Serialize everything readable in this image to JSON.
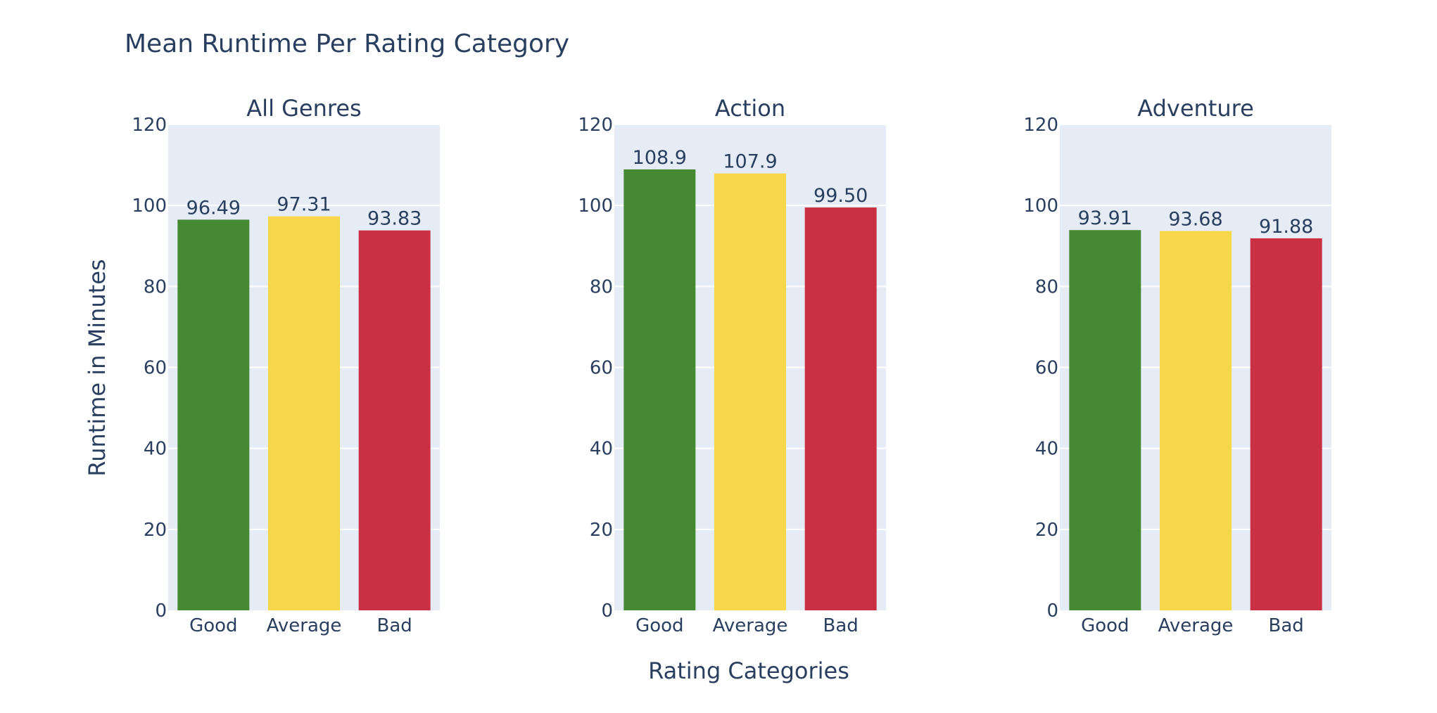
{
  "chart": {
    "title": "Mean Runtime Per Rating Category",
    "xlabel": "Rating Categories",
    "ylabel": "Runtime in Minutes"
  },
  "colors": {
    "plot_background": "#e5ecf6",
    "gridline": "#ffffff",
    "text": "#2a3f5f",
    "good": "#458933",
    "average": "#f8d84a",
    "bad": "#c93043"
  },
  "chart_data": [
    {
      "type": "bar",
      "title": "All Genres",
      "categories": [
        "Good",
        "Average",
        "Bad"
      ],
      "values": [
        96.49,
        97.31,
        93.83
      ],
      "labels": [
        "96.49",
        "97.31",
        "93.83"
      ],
      "ylim": [
        0,
        120
      ],
      "yticks": [
        0,
        20,
        40,
        60,
        80,
        100,
        120
      ],
      "grid": true
    },
    {
      "type": "bar",
      "title": "Action",
      "categories": [
        "Good",
        "Average",
        "Bad"
      ],
      "values": [
        108.9,
        107.9,
        99.5
      ],
      "labels": [
        "108.9",
        "107.9",
        "99.50"
      ],
      "ylim": [
        0,
        120
      ],
      "yticks": [
        0,
        20,
        40,
        60,
        80,
        100,
        120
      ],
      "grid": true
    },
    {
      "type": "bar",
      "title": "Adventure",
      "categories": [
        "Good",
        "Average",
        "Bad"
      ],
      "values": [
        93.91,
        93.68,
        91.88
      ],
      "labels": [
        "93.91",
        "93.68",
        "91.88"
      ],
      "ylim": [
        0,
        120
      ],
      "yticks": [
        0,
        20,
        40,
        60,
        80,
        100,
        120
      ],
      "grid": true
    }
  ]
}
